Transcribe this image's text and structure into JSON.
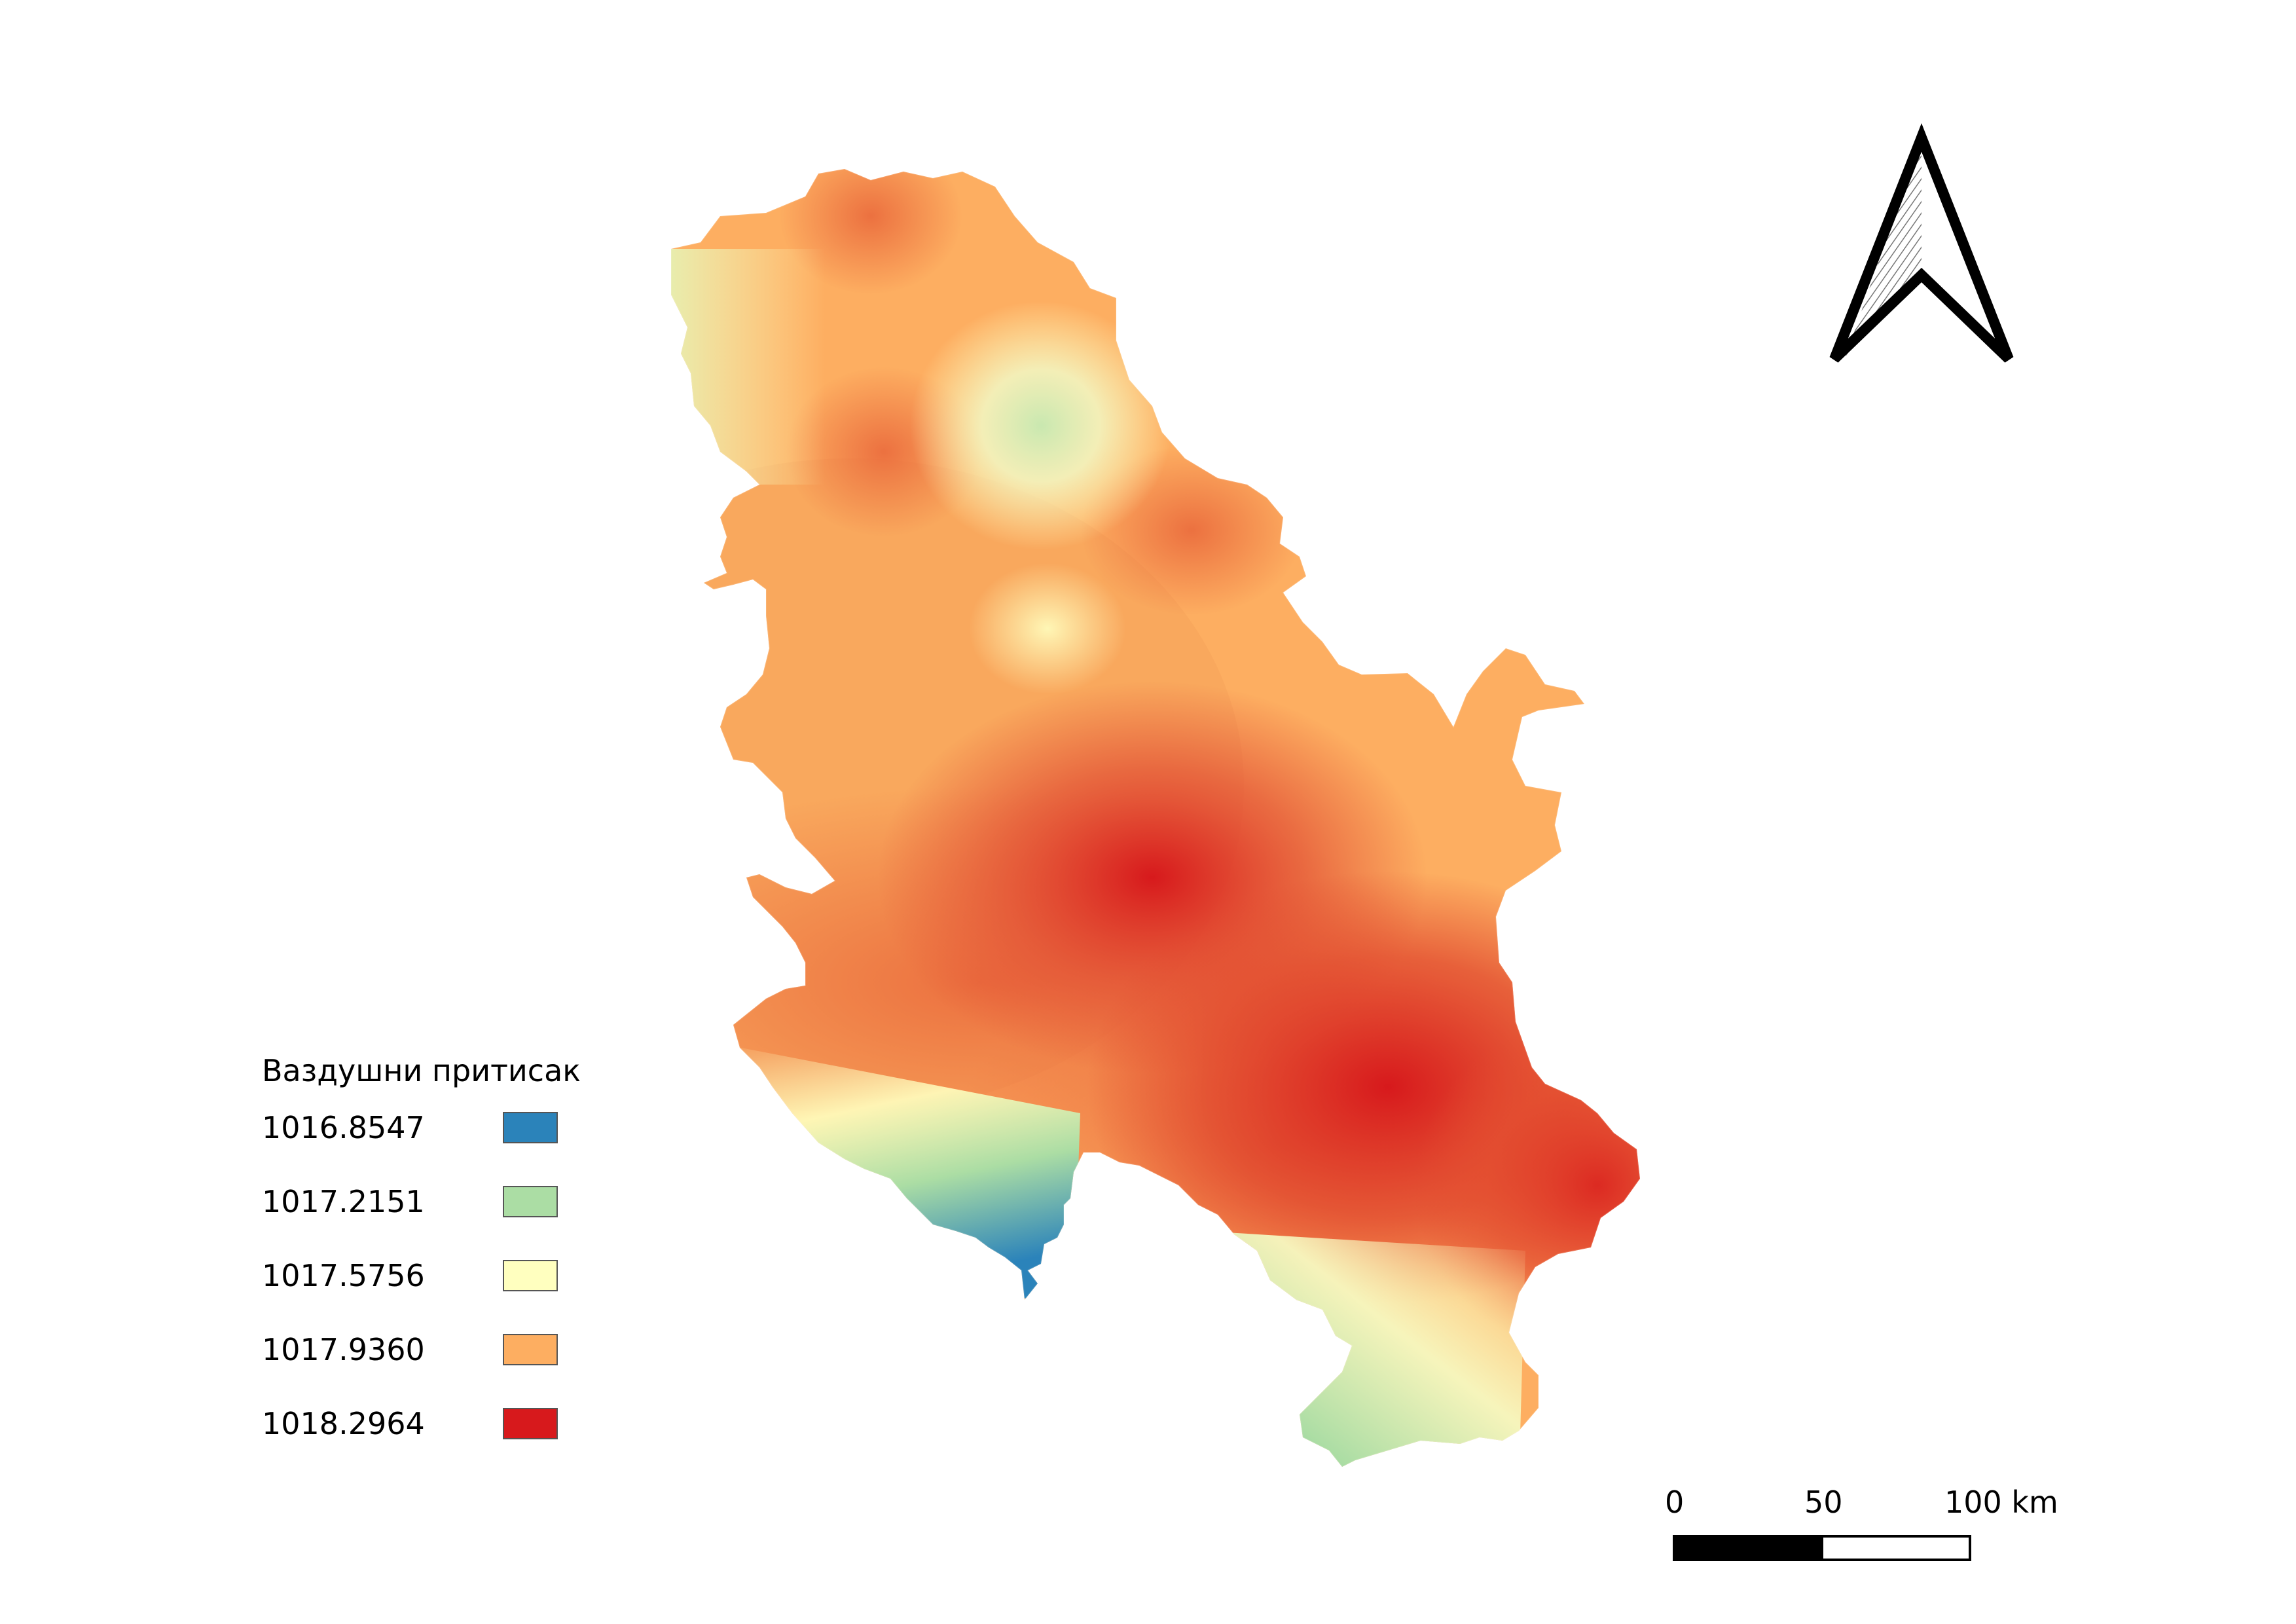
{
  "legend": {
    "title": "Ваздушни притисак",
    "items": [
      {
        "value": "1016.8547",
        "color": "#2b83ba"
      },
      {
        "value": "1017.2151",
        "color": "#abdda4"
      },
      {
        "value": "1017.5756",
        "color": "#ffffbf"
      },
      {
        "value": "1017.9360",
        "color": "#fdae61"
      },
      {
        "value": "1018.2964",
        "color": "#d7191c"
      }
    ]
  },
  "scale_bar": {
    "labels": [
      "0",
      "50",
      "100 km"
    ]
  },
  "north_arrow": {
    "icon": "north-arrow-icon"
  }
}
